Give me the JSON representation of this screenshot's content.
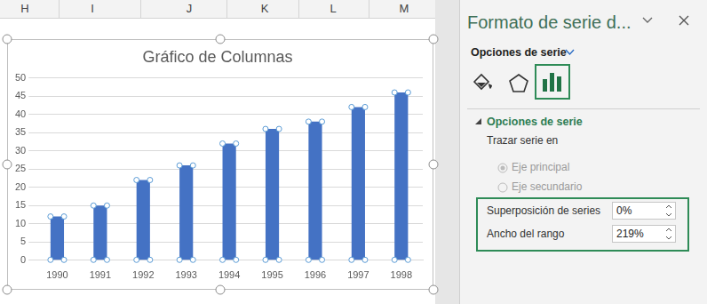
{
  "spreadsheet": {
    "column_headers": [
      "H",
      "I",
      "J",
      "K",
      "L",
      "M"
    ]
  },
  "chart_data": {
    "type": "bar",
    "title": "Gráfico de Columnas",
    "categories": [
      "1990",
      "1991",
      "1992",
      "1993",
      "1994",
      "1995",
      "1996",
      "1997",
      "1998"
    ],
    "values": [
      12,
      15,
      22,
      26,
      32,
      36,
      38,
      42,
      46
    ],
    "color": "#4472c4",
    "ylim": [
      0,
      50
    ],
    "yticks": [
      0,
      5,
      10,
      15,
      20,
      25,
      30,
      35,
      40,
      45,
      50
    ],
    "grid": true
  },
  "format_pane": {
    "title": "Formato de serie d...",
    "menu": "Opciones de serie",
    "section": "Opciones de serie",
    "plot_series_on": "Trazar serie en",
    "axis_options": [
      {
        "label": "Eje principal",
        "selected": true
      },
      {
        "label": "Eje secundario",
        "selected": false
      }
    ],
    "fields": [
      {
        "label": "Superposición de series",
        "value": "0%"
      },
      {
        "label": "Ancho del rango",
        "value": "219%"
      }
    ]
  }
}
